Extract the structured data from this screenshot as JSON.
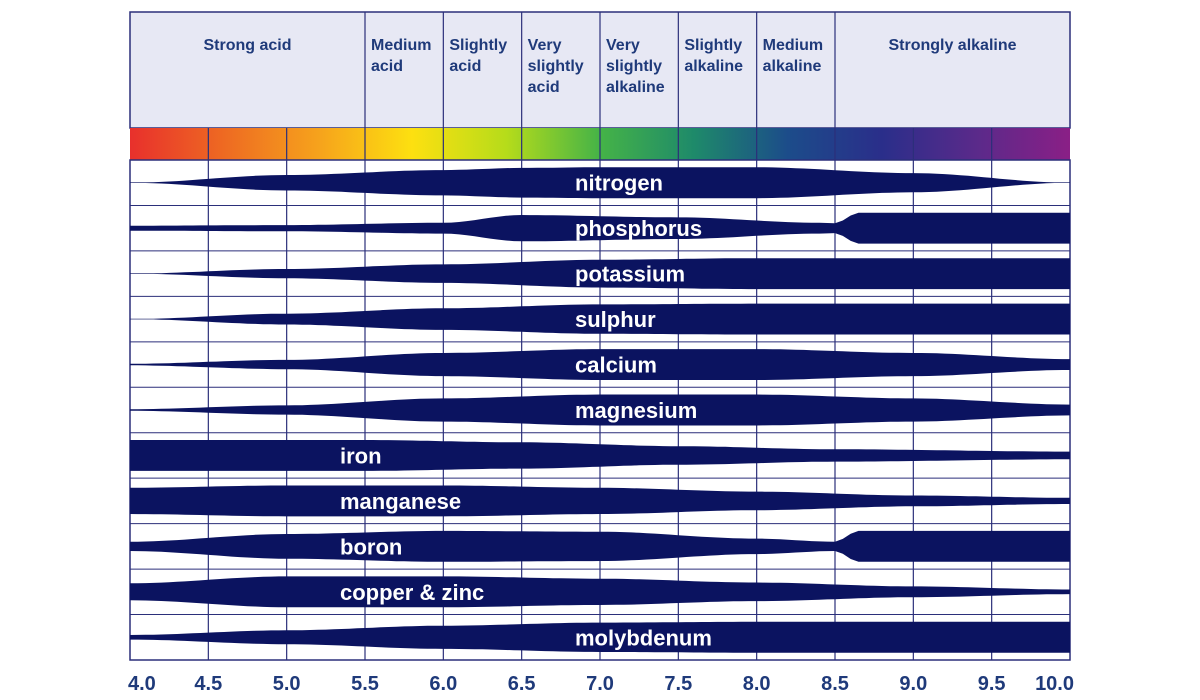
{
  "chart_data": {
    "type": "band",
    "x_axis": {
      "min": 4.0,
      "max": 10.0,
      "ticks": [
        "4.0",
        "4.5",
        "5.0",
        "5.5",
        "6.0",
        "6.5",
        "7.0",
        "7.5",
        "8.0",
        "8.5",
        "9.0",
        "9.5",
        "10.0"
      ]
    },
    "ph_ranges": [
      {
        "label": "Strong acid",
        "from": 4.0,
        "to": 5.5
      },
      {
        "label": "Medium acid",
        "from": 5.5,
        "to": 6.0
      },
      {
        "label": "Slightly acid",
        "from": 6.0,
        "to": 6.5
      },
      {
        "label": "Very slightly acid",
        "from": 6.5,
        "to": 7.0
      },
      {
        "label": "Very slightly alkaline",
        "from": 7.0,
        "to": 7.5
      },
      {
        "label": "Slightly alkaline",
        "from": 7.5,
        "to": 8.0
      },
      {
        "label": "Medium alkaline",
        "from": 8.0,
        "to": 8.5
      },
      {
        "label": "Strongly alkaline",
        "from": 8.5,
        "to": 10.0
      }
    ],
    "color_scale": [
      "#e8302c",
      "#ee6a22",
      "#f6a21c",
      "#fde010",
      "#b6dc1a",
      "#45b347",
      "#1e8a6a",
      "#1c4c8a",
      "#2a2e8a",
      "#5a2a8a",
      "#8a1f86"
    ],
    "nutrients": [
      {
        "name": "nitrogen",
        "label_x": 7.0,
        "samples": [
          [
            4.0,
            0.0
          ],
          [
            5.0,
            0.5
          ],
          [
            6.0,
            0.82
          ],
          [
            6.5,
            0.96
          ],
          [
            7.0,
            1.0
          ],
          [
            8.0,
            1.0
          ],
          [
            9.0,
            0.62
          ],
          [
            10.0,
            0.0
          ]
        ]
      },
      {
        "name": "phosphorus",
        "label_x": 7.0,
        "samples": [
          [
            4.0,
            0.16
          ],
          [
            5.0,
            0.2
          ],
          [
            6.0,
            0.35
          ],
          [
            6.5,
            0.85
          ],
          [
            7.5,
            0.7
          ],
          [
            8.4,
            0.35
          ],
          [
            8.5,
            0.32
          ],
          [
            8.65,
            1.0
          ],
          [
            10.0,
            1.0
          ]
        ]
      },
      {
        "name": "potassium",
        "label_x": 7.0,
        "samples": [
          [
            4.0,
            0.0
          ],
          [
            5.0,
            0.3
          ],
          [
            6.0,
            0.6
          ],
          [
            7.0,
            0.9
          ],
          [
            8.0,
            1.0
          ],
          [
            10.0,
            1.0
          ]
        ]
      },
      {
        "name": "sulphur",
        "label_x": 7.0,
        "samples": [
          [
            4.0,
            0.0
          ],
          [
            5.0,
            0.35
          ],
          [
            6.0,
            0.7
          ],
          [
            7.0,
            0.95
          ],
          [
            8.0,
            1.0
          ],
          [
            10.0,
            1.0
          ]
        ]
      },
      {
        "name": "calcium",
        "label_x": 7.0,
        "samples": [
          [
            4.0,
            0.05
          ],
          [
            5.0,
            0.3
          ],
          [
            6.0,
            0.75
          ],
          [
            7.0,
            1.0
          ],
          [
            8.0,
            1.0
          ],
          [
            9.0,
            0.75
          ],
          [
            10.0,
            0.35
          ]
        ]
      },
      {
        "name": "magnesium",
        "label_x": 7.0,
        "samples": [
          [
            4.0,
            0.05
          ],
          [
            5.0,
            0.3
          ],
          [
            6.0,
            0.75
          ],
          [
            7.0,
            1.0
          ],
          [
            8.0,
            1.0
          ],
          [
            9.0,
            0.75
          ],
          [
            10.0,
            0.35
          ]
        ]
      },
      {
        "name": "iron",
        "label_x": 5.5,
        "samples": [
          [
            4.0,
            1.0
          ],
          [
            5.5,
            1.0
          ],
          [
            6.5,
            0.85
          ],
          [
            7.5,
            0.6
          ],
          [
            8.5,
            0.4
          ],
          [
            10.0,
            0.25
          ]
        ]
      },
      {
        "name": "manganese",
        "label_x": 5.5,
        "samples": [
          [
            4.0,
            0.85
          ],
          [
            5.0,
            1.0
          ],
          [
            6.0,
            1.0
          ],
          [
            7.0,
            0.85
          ],
          [
            8.0,
            0.6
          ],
          [
            9.0,
            0.35
          ],
          [
            10.0,
            0.2
          ]
        ]
      },
      {
        "name": "boron",
        "label_x": 5.5,
        "samples": [
          [
            4.0,
            0.3
          ],
          [
            5.0,
            0.8
          ],
          [
            6.0,
            1.0
          ],
          [
            7.0,
            0.95
          ],
          [
            8.0,
            0.5
          ],
          [
            8.5,
            0.3
          ],
          [
            8.65,
            1.0
          ],
          [
            10.0,
            1.0
          ]
        ]
      },
      {
        "name": "copper & zinc",
        "label_x": 5.5,
        "samples": [
          [
            4.0,
            0.55
          ],
          [
            5.0,
            1.0
          ],
          [
            6.0,
            1.0
          ],
          [
            7.0,
            0.85
          ],
          [
            8.0,
            0.6
          ],
          [
            9.0,
            0.35
          ],
          [
            10.0,
            0.15
          ]
        ]
      },
      {
        "name": "molybdenum",
        "label_x": 7.0,
        "samples": [
          [
            4.0,
            0.15
          ],
          [
            5.0,
            0.45
          ],
          [
            6.0,
            0.75
          ],
          [
            7.0,
            0.95
          ],
          [
            8.0,
            1.0
          ],
          [
            10.0,
            1.0
          ]
        ]
      }
    ]
  },
  "colors": {
    "band": "#0b1360",
    "grid": "#2b2f7a",
    "text": "#1f3a7a",
    "header_bg": "#e7e8f4"
  }
}
